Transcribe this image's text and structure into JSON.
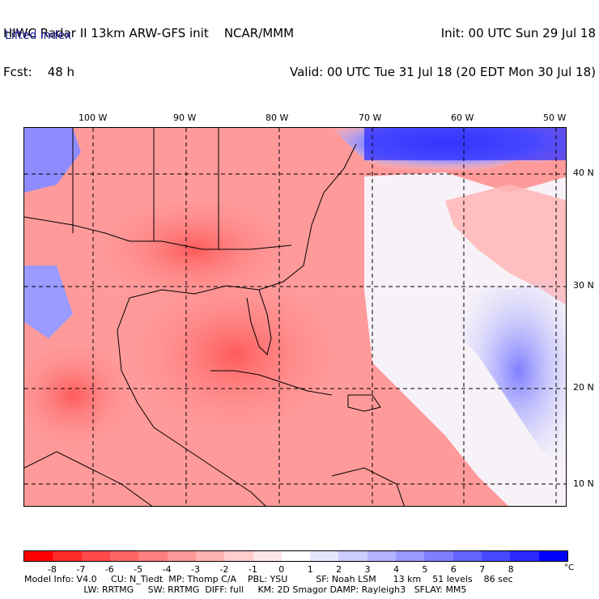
{
  "header": {
    "line1_left": "HIWC Radar II 13km ARW-GFS init    NCAR/MMM",
    "line2_left": "Fcst:    48 h",
    "line1_right": "Init: 00 UTC Sun 29 Jul 18",
    "line2_right": "Valid: 00 UTC Tue 31 Jul 18 (20 EDT Mon 30 Jul 18)",
    "field": "Lifted index"
  },
  "map": {
    "lon_labels": [
      "100 W",
      "90 W",
      "80 W",
      "70 W",
      "60 W",
      "50 W"
    ],
    "lat_labels": [
      "40 N",
      "30 N",
      "20 N",
      "10 N"
    ]
  },
  "colorbar": {
    "labels": [
      "-8",
      "-7",
      "-6",
      "-5",
      "-4",
      "-3",
      "-2",
      "-1",
      "0",
      "1",
      "2",
      "3",
      "4",
      "5",
      "6",
      "7",
      "8"
    ],
    "unit": "°C",
    "colors": [
      "#ff0000",
      "#ff2a2a",
      "#ff4848",
      "#ff6464",
      "#ff7e7e",
      "#ff9898",
      "#ffb2b2",
      "#ffcccc",
      "#ffe6e6",
      "#ffffff",
      "#e6e6ff",
      "#ccccff",
      "#b2b2ff",
      "#9898ff",
      "#7e7eff",
      "#6464ff",
      "#4848ff",
      "#2a2aff",
      "#0000ff"
    ]
  },
  "footer": {
    "line1": "Model Info: V4.0     CU: N_Tiedt  MP: Thomp C/A    PBL: YSU          SF: Noah LSM      13 km    51 levels    86 sec",
    "line2": "                     LW: RRTMG     SW: RRTMG  DIFF: full     KM: 2D Smagor DAMP: Rayleigh3   SFLAY: MM5"
  }
}
